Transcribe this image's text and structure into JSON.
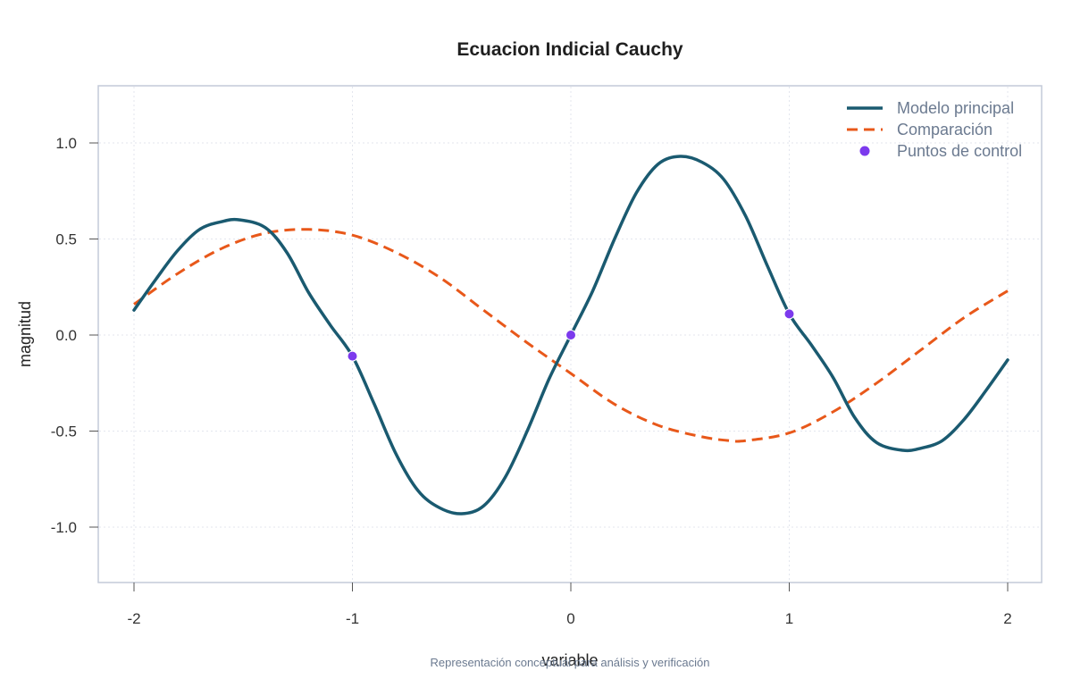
{
  "chart_data": {
    "type": "line",
    "title": "Ecuacion Indicial Cauchy",
    "xlabel": "variable",
    "ylabel": "magnitud",
    "caption": "Representación conceptual para análisis y verificación",
    "xlim": [
      -2,
      2
    ],
    "ylim": [
      -1.3,
      1.3
    ],
    "x_ticks": [
      -2,
      -1,
      0,
      1,
      2
    ],
    "x_tick_labels": [
      "-2",
      "-1",
      "0",
      "1",
      "2"
    ],
    "y_ticks": [
      -1.0,
      -0.5,
      0.0,
      0.5,
      1.0
    ],
    "y_tick_labels": [
      "-1.0",
      "-0.5",
      "0.0",
      "0.5",
      "1.0"
    ],
    "grid": true,
    "legend_position": "top-right",
    "series": [
      {
        "name": "Modelo principal",
        "style": "solid",
        "color": "#1a5a70",
        "x": [
          -2.0,
          -1.9,
          -1.8,
          -1.7,
          -1.6,
          -1.52,
          -1.4,
          -1.3,
          -1.2,
          -1.1,
          -1.0,
          -0.9,
          -0.8,
          -0.7,
          -0.6,
          -0.5,
          -0.4,
          -0.3,
          -0.2,
          -0.1,
          0.0,
          0.1,
          0.2,
          0.3,
          0.4,
          0.5,
          0.6,
          0.7,
          0.8,
          0.9,
          1.0,
          1.1,
          1.2,
          1.3,
          1.4,
          1.52,
          1.6,
          1.7,
          1.8,
          1.9,
          2.0
        ],
        "y": [
          0.13,
          0.29,
          0.44,
          0.55,
          0.59,
          0.6,
          0.56,
          0.43,
          0.22,
          0.05,
          -0.11,
          -0.36,
          -0.62,
          -0.81,
          -0.9,
          -0.93,
          -0.89,
          -0.74,
          -0.5,
          -0.23,
          0.0,
          0.23,
          0.5,
          0.74,
          0.89,
          0.93,
          0.9,
          0.81,
          0.62,
          0.36,
          0.11,
          -0.05,
          -0.22,
          -0.43,
          -0.56,
          -0.6,
          -0.59,
          -0.55,
          -0.44,
          -0.29,
          -0.13
        ]
      },
      {
        "name": "Comparación",
        "style": "dashed",
        "color": "#e8581a",
        "x": [
          -2.0,
          -1.8,
          -1.6,
          -1.4,
          -1.2,
          -1.0,
          -0.8,
          -0.6,
          -0.4,
          -0.2,
          0.0,
          0.2,
          0.4,
          0.6,
          0.73,
          0.8,
          1.0,
          1.2,
          1.4,
          1.6,
          1.8,
          2.0
        ],
        "y": [
          0.16,
          0.32,
          0.45,
          0.53,
          0.55,
          0.52,
          0.43,
          0.3,
          0.13,
          -0.04,
          -0.2,
          -0.36,
          -0.47,
          -0.53,
          -0.55,
          -0.55,
          -0.51,
          -0.4,
          -0.25,
          -0.08,
          0.09,
          0.23
        ]
      },
      {
        "name": "Puntos de control",
        "style": "points",
        "color": "#7c3aed",
        "x": [
          -1,
          0,
          1
        ],
        "y": [
          -0.11,
          0.0,
          0.11
        ]
      }
    ]
  }
}
